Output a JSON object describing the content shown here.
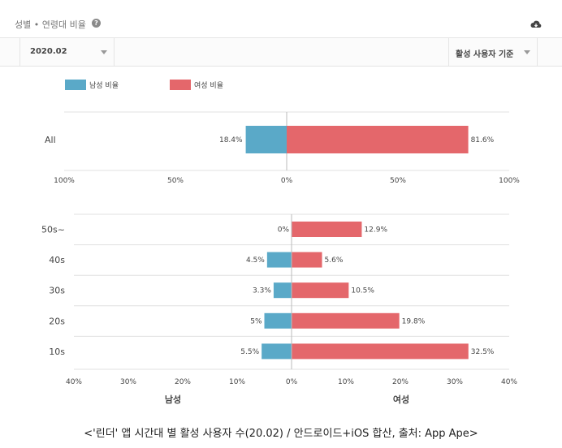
{
  "header": {
    "title": "성별 • 연령대 비율",
    "help_icon": "question-circle-icon",
    "download_icon": "cloud-download-icon"
  },
  "toolbar": {
    "date_value": "2020.02",
    "basis_value": "활성 사용자 기준"
  },
  "colors": {
    "male": "#5aa9c8",
    "female": "#e4676b",
    "grid": "#e0e0e0"
  },
  "chart_data": [
    {
      "type": "bar",
      "orientation": "horizontal-diverging",
      "legend": [
        "남성 비율",
        "여성 비율"
      ],
      "legend_position": "top-left",
      "categories": [
        "All"
      ],
      "series": [
        {
          "name": "남성 비율",
          "values": [
            18.4
          ]
        },
        {
          "name": "여성 비율",
          "values": [
            81.6
          ]
        }
      ],
      "value_labels": {
        "male": [
          "18.4%"
        ],
        "female": [
          "81.6%"
        ]
      },
      "xlim": [
        -100,
        100
      ],
      "xticks": [
        "100%",
        "50%",
        "0%",
        "50%",
        "100%"
      ]
    },
    {
      "type": "bar",
      "orientation": "horizontal-diverging",
      "categories": [
        "50s~",
        "40s",
        "30s",
        "20s",
        "10s"
      ],
      "series": [
        {
          "name": "남성",
          "values": [
            0,
            4.5,
            3.3,
            5,
            5.5
          ]
        },
        {
          "name": "여성",
          "values": [
            12.9,
            5.6,
            10.5,
            19.8,
            32.5
          ]
        }
      ],
      "value_labels": {
        "male": [
          "0%",
          "4.5%",
          "3.3%",
          "5%",
          "5.5%"
        ],
        "female": [
          "12.9%",
          "5.6%",
          "10.5%",
          "19.8%",
          "32.5%"
        ]
      },
      "xlim": [
        -40,
        40
      ],
      "xticks": [
        "40%",
        "30%",
        "20%",
        "10%",
        "0%",
        "10%",
        "20%",
        "30%",
        "40%"
      ],
      "xlabels": [
        "남성",
        "여성"
      ]
    }
  ],
  "caption": "<'린더' 앱 시간대 별 활성 사용자 수(20.02) / 안드로이드+iOS 합산, 출처: App Ape>"
}
